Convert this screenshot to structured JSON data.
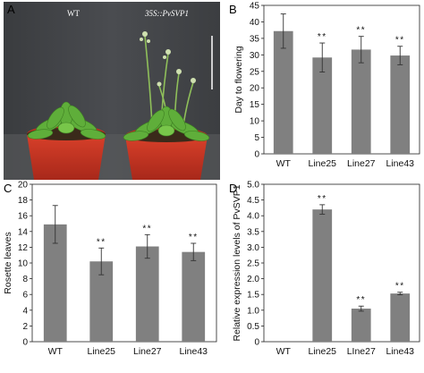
{
  "panels": {
    "a": {
      "letter": "A",
      "wt_label": "WT",
      "transgenic_label": "35S::PvSVP1"
    },
    "b": {
      "letter": "B"
    },
    "c": {
      "letter": "C"
    },
    "d": {
      "letter": "D"
    }
  },
  "colors": {
    "bar": "#808080",
    "sig": "#111111"
  },
  "chart_data": [
    {
      "id": "b",
      "type": "bar",
      "categories": [
        "WT",
        "Line25",
        "Line27",
        "Line43"
      ],
      "values": [
        37.2,
        29.2,
        31.6,
        29.8
      ],
      "errors": [
        5.2,
        4.4,
        4.0,
        2.8
      ],
      "significance": [
        "",
        "**",
        "**",
        "**"
      ],
      "ylabel": "Day to flowering",
      "xlabel": "",
      "ylim": [
        0,
        45
      ],
      "yticks": [
        "0",
        "5",
        "10",
        "15",
        "20",
        "25",
        "30",
        "35",
        "40",
        "45"
      ],
      "ytick_values": [
        0,
        5,
        10,
        15,
        20,
        25,
        30,
        35,
        40,
        45
      ]
    },
    {
      "id": "c",
      "type": "bar",
      "categories": [
        "WT",
        "Line25",
        "Line27",
        "Line43"
      ],
      "values": [
        14.9,
        10.2,
        12.1,
        11.4
      ],
      "errors": [
        2.4,
        1.7,
        1.5,
        1.1
      ],
      "significance": [
        "",
        "**",
        "**",
        "**"
      ],
      "ylabel": "Rosette leaves",
      "xlabel": "",
      "ylim": [
        0,
        20
      ],
      "yticks": [
        "0",
        "2",
        "4",
        "6",
        "8",
        "10",
        "12",
        "14",
        "16",
        "18",
        "20"
      ],
      "ytick_values": [
        0,
        2,
        4,
        6,
        8,
        10,
        12,
        14,
        16,
        18,
        20
      ]
    },
    {
      "id": "d",
      "type": "bar",
      "categories": [
        "WT",
        "Line25",
        "LIne27",
        "Line43"
      ],
      "values": [
        0.0,
        4.2,
        1.05,
        1.53
      ],
      "errors": [
        0.0,
        0.15,
        0.08,
        0.04
      ],
      "significance": [
        "",
        "**",
        "**",
        "**"
      ],
      "ylabel": "Relative expression levels of PvSVP1",
      "xlabel": "",
      "ylim": [
        0,
        5.0
      ],
      "yticks": [
        "0",
        "0.5",
        "1.0",
        "1.5",
        "2.0",
        "2.5",
        "3.0",
        "3.5",
        "4.0",
        "4.5",
        "5.0"
      ],
      "ytick_values": [
        0,
        0.5,
        1.0,
        1.5,
        2.0,
        2.5,
        3.0,
        3.5,
        4.0,
        4.5,
        5.0
      ]
    }
  ]
}
